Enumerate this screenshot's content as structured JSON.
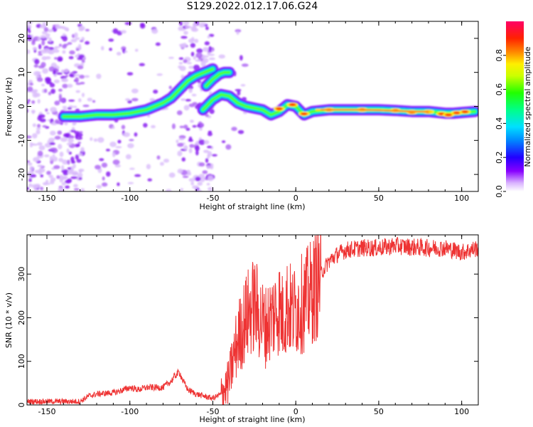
{
  "title": "S129.2022.012.17.06.G24",
  "chart_data": [
    {
      "type": "heatmap",
      "xlabel": "Height of straight line (km)",
      "ylabel": "Frequency (Hz)",
      "xlim": [
        -162,
        110
      ],
      "ylim": [
        -25,
        25
      ],
      "xticks": [
        -150,
        -100,
        -50,
        0,
        50,
        100
      ],
      "yticks": [
        -20,
        -10,
        0,
        10,
        20
      ],
      "colorbar": {
        "label": "Normalized spectral amplitude",
        "range": [
          0,
          1
        ],
        "ticks": [
          0.0,
          0.2,
          0.4,
          0.6,
          0.8
        ]
      },
      "ridge": {
        "main_x": [
          -140,
          -130,
          -120,
          -110,
          -100,
          -90,
          -80,
          -75,
          -70,
          -65,
          -60,
          -55,
          -50
        ],
        "main_y": [
          -3,
          -3,
          -2.5,
          -2.5,
          -2,
          -1,
          1,
          2.5,
          5,
          7.5,
          9,
          10,
          11
        ],
        "upper_branch_x": [
          -54,
          -50,
          -46,
          -43,
          -40
        ],
        "upper_branch_y": [
          6,
          8,
          9.5,
          10,
          10
        ],
        "lower_branch_x": [
          -56,
          -50,
          -45,
          -40,
          -35,
          -30,
          -25,
          -20,
          -15,
          -10,
          -5,
          0,
          5,
          10,
          20,
          30,
          40,
          50,
          60,
          70,
          80,
          90,
          95,
          100,
          108
        ],
        "lower_branch_y": [
          -1,
          2,
          3.5,
          3,
          1,
          0,
          -0.5,
          -1,
          -2.5,
          -1.5,
          0.5,
          0,
          -2.5,
          -1.5,
          -1,
          -1,
          -1,
          -1,
          -1.2,
          -1.5,
          -1.5,
          -2,
          -2,
          -1.8,
          -1.5
        ],
        "strong_x": [
          -10,
          -2,
          5,
          20,
          40,
          60,
          70,
          80,
          88,
          92,
          97,
          102
        ],
        "strong_y": [
          -0.7,
          0.5,
          -2.2,
          -1,
          -1,
          -1.2,
          -1.7,
          -1.6,
          -2.2,
          -2.5,
          -1.9,
          -1.6
        ]
      }
    },
    {
      "type": "line",
      "xlabel": "Height of straight line (km)",
      "ylabel": "SNR (10 * v/v)",
      "xlim": [
        -162,
        110
      ],
      "ylim": [
        0,
        390
      ],
      "xticks": [
        -150,
        -100,
        -50,
        0,
        50,
        100
      ],
      "yticks": [
        0,
        100,
        200,
        300
      ],
      "color": "#ee3333",
      "x": [
        -162,
        -150,
        -140,
        -130,
        -125,
        -120,
        -110,
        -105,
        -100,
        -95,
        -90,
        -85,
        -80,
        -75,
        -72,
        -70,
        -68,
        -65,
        -60,
        -55,
        -50,
        -45,
        -42,
        -40,
        -38,
        -35,
        -32,
        -30,
        -27,
        -25,
        -22,
        -20,
        -18,
        -15,
        -12,
        -10,
        -8,
        -5,
        -2,
        0,
        3,
        5,
        8,
        10,
        13,
        15,
        20,
        25,
        30,
        40,
        50,
        60,
        70,
        80,
        90,
        95,
        100,
        105,
        110
      ],
      "y": [
        8,
        8,
        8,
        8,
        20,
        25,
        28,
        33,
        40,
        35,
        40,
        40,
        40,
        55,
        70,
        75,
        55,
        35,
        25,
        20,
        15,
        25,
        40,
        60,
        100,
        150,
        180,
        200,
        220,
        230,
        205,
        190,
        180,
        200,
        215,
        225,
        200,
        230,
        210,
        220,
        230,
        235,
        250,
        260,
        280,
        300,
        330,
        345,
        355,
        360,
        360,
        365,
        362,
        360,
        360,
        355,
        350,
        355,
        360
      ]
    }
  ]
}
